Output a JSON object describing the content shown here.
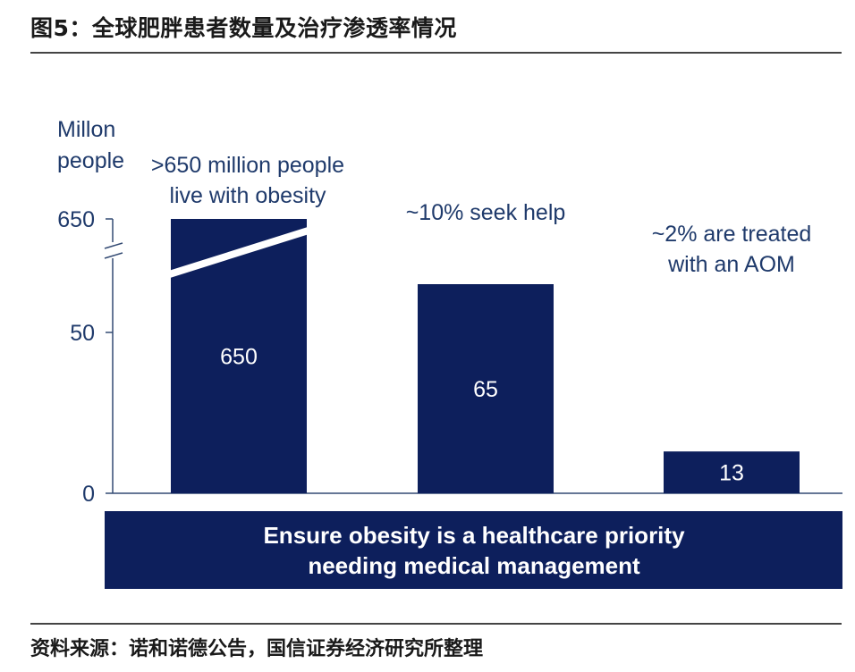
{
  "page_title": "图5：全球肥胖患者数量及治疗渗透率情况",
  "source": "资料来源：诺和诺德公告，国信证券经济研究所整理",
  "colors": {
    "bar": "#0d1f5c",
    "banner": "#0d1f5c",
    "axis": "#334a73",
    "text": "#1f3a6b"
  },
  "chart_data": {
    "type": "bar",
    "ylabel": [
      "Millon",
      "people"
    ],
    "y_axis_break": true,
    "yticks": [
      0,
      50,
      650
    ],
    "categories": [
      "",
      "",
      ""
    ],
    "values": [
      650,
      65,
      13
    ],
    "value_labels": [
      "650",
      "65",
      "13"
    ],
    "annotations": [
      [
        ">650 million people",
        "live with obesity"
      ],
      [
        "~10% seek help"
      ],
      [
        "~2% are treated",
        "with an AOM"
      ]
    ],
    "banner": [
      "Ensure obesity is a healthcare priority",
      "needing medical management"
    ]
  }
}
